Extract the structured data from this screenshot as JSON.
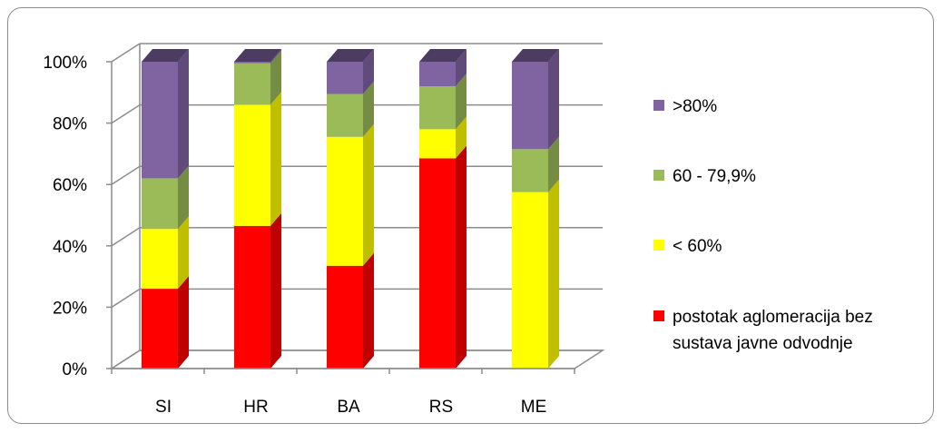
{
  "chart_data": {
    "type": "bar",
    "stacked": true,
    "three_d": true,
    "categories": [
      "SI",
      "HR",
      "BA",
      "RS",
      "ME"
    ],
    "series": [
      {
        "name": "postotak aglomeracija bez sustava javne odvodnje",
        "color": "#ff0000",
        "values": [
          26,
          46.5,
          33.5,
          68.5,
          0
        ]
      },
      {
        "name": "< 60%",
        "color": "#ffff00",
        "values": [
          19.5,
          39.5,
          42,
          9.5,
          57.5
        ]
      },
      {
        "name": "60 - 79,9%",
        "color": "#9bbb59",
        "values": [
          16.5,
          13.5,
          14,
          14,
          14
        ]
      },
      {
        "name": ">80%",
        "color": "#8064a2",
        "values": [
          38,
          0.5,
          10.5,
          8,
          28.5
        ]
      }
    ],
    "y_ticks": [
      "0%",
      "20%",
      "40%",
      "60%",
      "80%",
      "100%"
    ],
    "ylim": [
      0,
      100
    ],
    "title": "",
    "xlabel": "",
    "ylabel": "",
    "grid": true,
    "legend_position": "right"
  }
}
